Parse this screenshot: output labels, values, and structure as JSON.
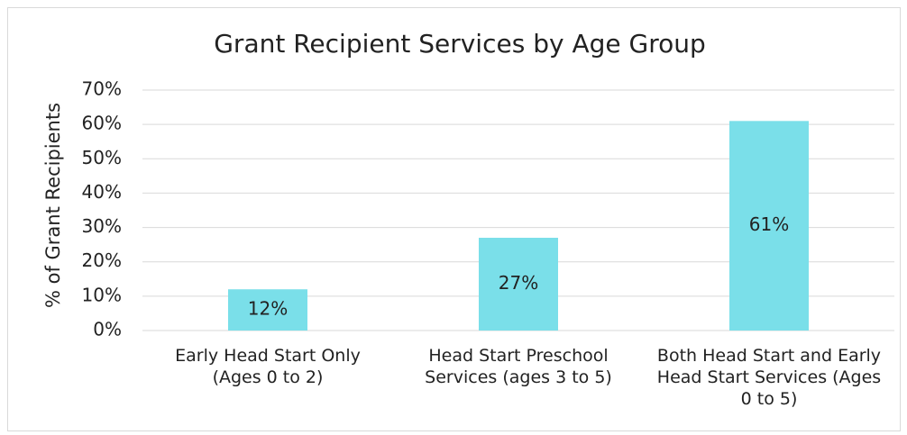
{
  "chart_data": {
    "type": "bar",
    "title": "Grant Recipient Services by Age Group",
    "y_label": "% of Grant Recipients",
    "categories": [
      "Early Head Start Only (Ages 0 to 2)",
      "Head Start Preschool Services (ages 3 to 5)",
      "Both Head Start and Early Head Start Services (Ages 0 to 5)"
    ],
    "values": [
      12,
      27,
      61
    ],
    "value_labels": [
      "12%",
      "27%",
      "61%"
    ],
    "color": "#7adfe9",
    "ylim": [
      0,
      70
    ],
    "yticks": [
      {
        "value": 0,
        "label": "0%"
      },
      {
        "value": 10,
        "label": "10%"
      },
      {
        "value": 20,
        "label": "20%"
      },
      {
        "value": 30,
        "label": "30%"
      },
      {
        "value": 40,
        "label": "40%"
      },
      {
        "value": 50,
        "label": "50%"
      },
      {
        "value": 60,
        "label": "60%"
      },
      {
        "value": 70,
        "label": "70%"
      }
    ],
    "grid": true
  }
}
